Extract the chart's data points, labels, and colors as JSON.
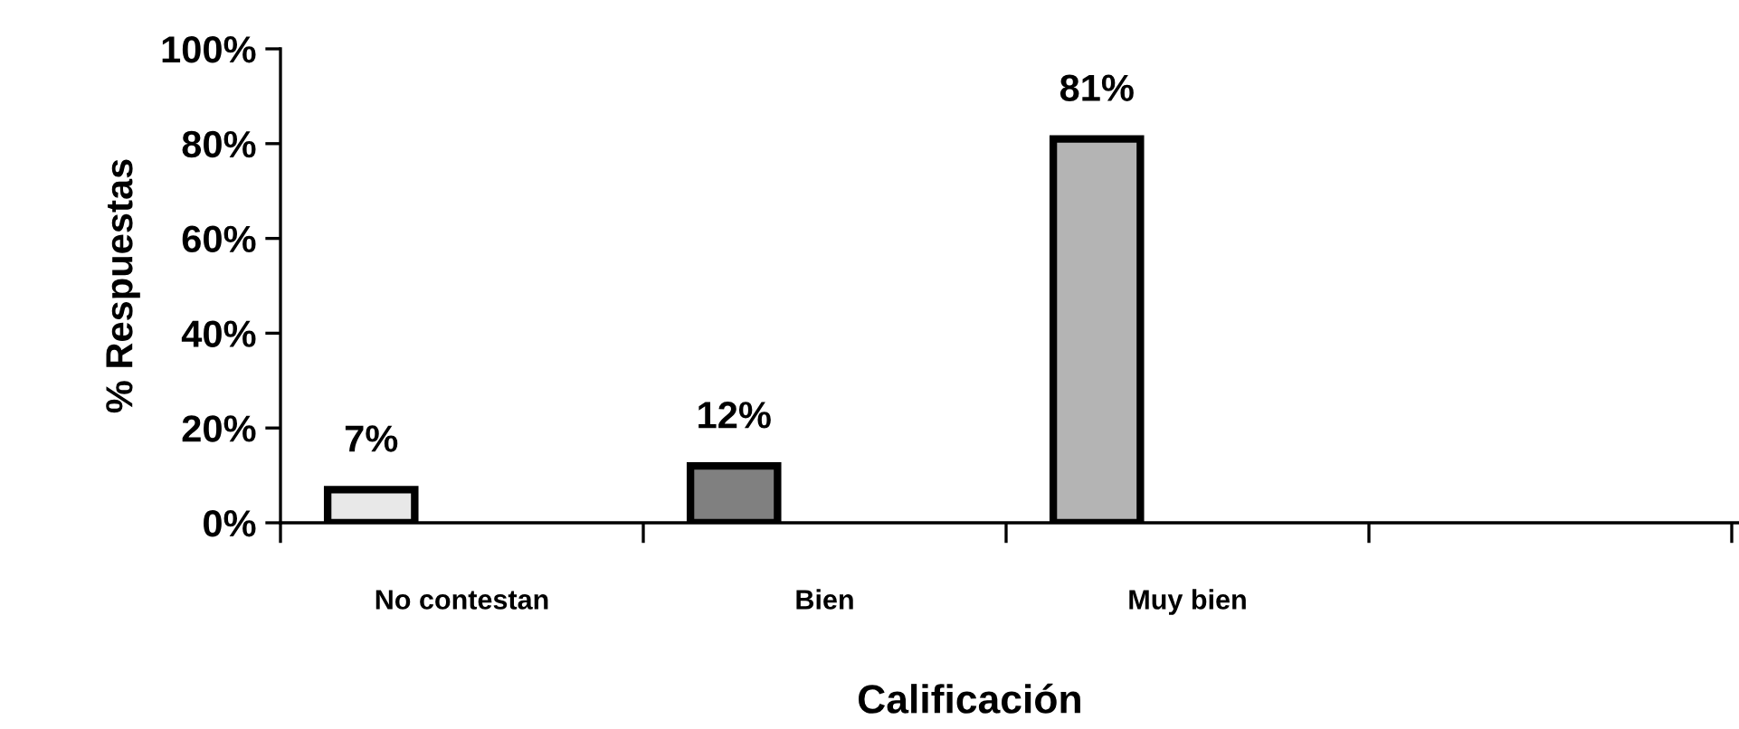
{
  "chart_data": {
    "type": "bar",
    "xlabel": "Calificación",
    "ylabel": "% Respuestas",
    "categories": [
      "No contestan",
      "Bien",
      "Muy bien",
      null
    ],
    "values": [
      7,
      12,
      81,
      null
    ],
    "colors": [
      "#e8e8e8",
      "#808080",
      "#b4b4b4",
      "#ffffff"
    ],
    "value_labels": [
      "7%",
      "12%",
      "81%",
      null
    ],
    "ylim": [
      0,
      100
    ],
    "yticks": [
      {
        "value": 0,
        "label": "0%"
      },
      {
        "value": 20,
        "label": "20%"
      },
      {
        "value": 40,
        "label": "40%"
      },
      {
        "value": 60,
        "label": "60%"
      },
      {
        "value": 80,
        "label": "80%"
      },
      {
        "value": 100,
        "label": "100%"
      }
    ],
    "grid": false
  }
}
